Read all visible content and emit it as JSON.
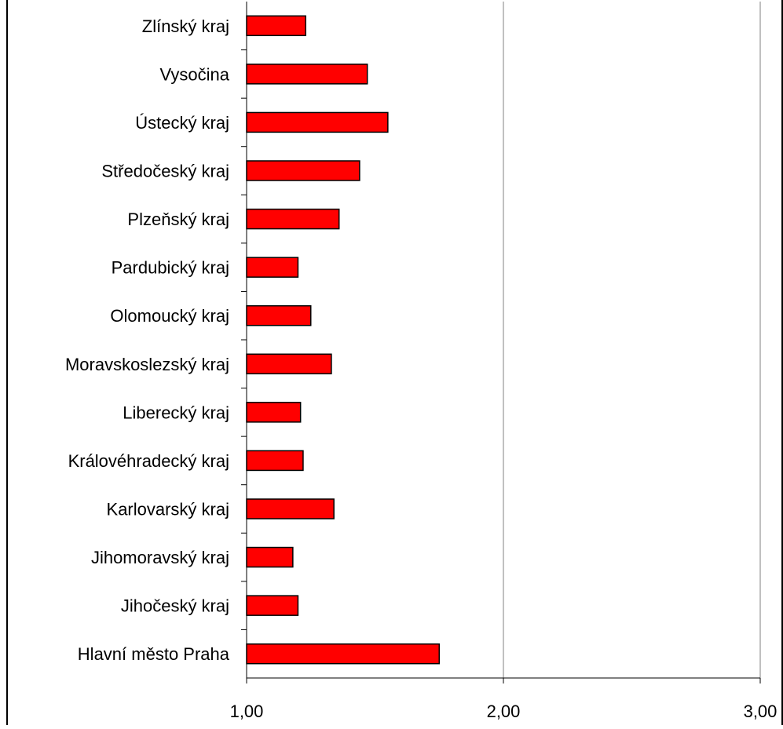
{
  "chart_data": {
    "type": "bar",
    "orientation": "horizontal",
    "title": "",
    "xlabel": "",
    "ylabel": "",
    "categories": [
      "Zlínský kraj",
      "Vysočina",
      "Ústecký kraj",
      "Středočeský kraj",
      "Plzeňský kraj",
      "Pardubický kraj",
      "Olomoucký kraj",
      "Moravskoslezský kraj",
      "Liberecký kraj",
      "Královéhradecký kraj",
      "Karlovarský kraj",
      "Jihomoravský kraj",
      "Jihočeský kraj",
      "Hlavní město Praha"
    ],
    "values": [
      1.23,
      1.47,
      1.55,
      1.44,
      1.36,
      1.2,
      1.25,
      1.33,
      1.21,
      1.22,
      1.34,
      1.18,
      1.2,
      1.75
    ],
    "xlim": [
      1.0,
      3.0
    ],
    "xticks": [
      "1,00",
      "2,00",
      "3,00"
    ],
    "grid": "vertical",
    "legend": "none",
    "colors": {
      "bar_fill": "#ff0000",
      "bar_stroke": "#000000",
      "gridline": "#808080",
      "axis": "#000000"
    }
  }
}
